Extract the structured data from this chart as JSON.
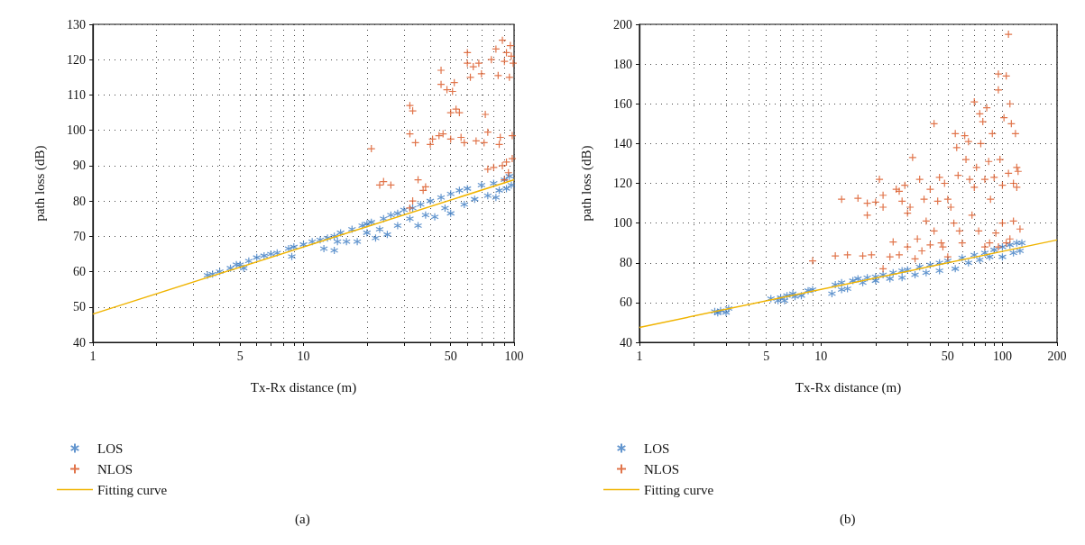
{
  "chart_data": [
    {
      "type": "scatter",
      "xlabel": "Tx-Rx distance (m)",
      "ylabel": "path loss (dB)",
      "log": "x",
      "grid": true,
      "legend": "bottom",
      "annotations": [
        "(a)"
      ],
      "xlim": [
        1,
        100
      ],
      "ylim": [
        40,
        130
      ],
      "xticks": [
        1,
        {
          "value": 2,
          "label": null
        },
        {
          "value": 3,
          "label": null
        },
        {
          "value": 4,
          "label": null
        },
        5,
        {
          "value": 6,
          "label": null
        },
        {
          "value": 7,
          "label": null
        },
        {
          "value": 8,
          "label": null
        },
        {
          "value": 9,
          "label": null
        },
        10,
        {
          "value": 20,
          "label": null
        },
        {
          "value": 30,
          "label": null
        },
        {
          "value": 40,
          "label": null
        },
        50,
        {
          "value": 60,
          "label": null
        },
        {
          "value": 70,
          "label": null
        },
        {
          "value": 80,
          "label": null
        },
        {
          "value": 90,
          "label": null
        },
        100
      ],
      "yticks": [
        40,
        50,
        60,
        70,
        80,
        90,
        100,
        110,
        120,
        130
      ],
      "series": [
        {
          "name": "LOS",
          "marker": "cross",
          "color": "#3b7bc2",
          "x": [
            3.5,
            3.7,
            4,
            4.5,
            4.8,
            5,
            5.2,
            5.5,
            6,
            6.5,
            7,
            7.5,
            8.5,
            8.8,
            9,
            10,
            11,
            12,
            12.5,
            13,
            14,
            14,
            14.5,
            15,
            16,
            17,
            18,
            19,
            20,
            20,
            21,
            22,
            23,
            24,
            25,
            26,
            28,
            28,
            30,
            32,
            33,
            35,
            36,
            38,
            40,
            42,
            45,
            47,
            50,
            50,
            55,
            58,
            60,
            65,
            70,
            75,
            80,
            82,
            85,
            90,
            92,
            95,
            97
          ],
          "values": [
            59,
            59.3,
            60,
            61,
            62,
            62,
            61,
            63,
            64,
            64.5,
            65,
            65.3,
            66.5,
            64.3,
            67,
            67.7,
            68.5,
            69,
            66.5,
            69.5,
            70,
            66,
            68.5,
            71,
            68.5,
            72,
            68.5,
            73,
            73.5,
            71,
            74,
            69.5,
            72,
            75,
            70.5,
            76,
            76.5,
            73,
            77.5,
            75,
            78,
            73,
            79,
            76,
            80,
            75.5,
            81,
            78,
            82,
            76.5,
            83,
            79,
            83.5,
            80.5,
            84.5,
            81.5,
            85,
            81,
            83,
            86,
            83.5,
            87,
            84.5
          ]
        },
        {
          "name": "NLOS",
          "marker": "cross",
          "color": "#d9531e",
          "x": [
            21,
            23,
            24,
            26,
            32,
            33,
            32,
            33,
            32,
            34,
            35,
            37,
            38,
            40,
            41,
            44,
            45,
            45,
            46,
            48,
            50,
            50,
            51,
            52,
            53,
            55,
            56,
            58,
            60,
            60,
            62,
            64,
            66,
            68,
            70,
            72,
            73,
            75,
            75,
            78,
            80,
            82,
            84,
            85,
            86,
            88,
            88,
            90,
            92,
            92,
            94,
            95,
            96,
            97,
            98,
            98,
            99,
            90
          ],
          "values": [
            94.8,
            84.5,
            85.5,
            84.5,
            78,
            80,
            107,
            105.5,
            99,
            96.5,
            86,
            83,
            84,
            96,
            97.5,
            98.5,
            117,
            113,
            99,
            111.5,
            97.5,
            105,
            111,
            113.5,
            106,
            105,
            98,
            96.5,
            122,
            119,
            115,
            118,
            97,
            119,
            116,
            96.5,
            104.5,
            99.5,
            89,
            120,
            89.5,
            123,
            115.5,
            96,
            98,
            125.5,
            90,
            119.5,
            122,
            91,
            88,
            115,
            124,
            121,
            98.5,
            92,
            119,
            86
          ]
        },
        {
          "name": "Fitting curve",
          "type": "line",
          "marker": "none",
          "color": "#f0b400",
          "x": [
            1,
            100
          ],
          "values": [
            48,
            86
          ]
        }
      ]
    },
    {
      "type": "scatter",
      "xlabel": "Tx-Rx distance (m)",
      "ylabel": "path loss (dB)",
      "log": "x",
      "grid": true,
      "legend": "bottom",
      "annotations": [
        "(b)"
      ],
      "xlim": [
        1,
        200
      ],
      "ylim": [
        40,
        200
      ],
      "xticks": [
        1,
        {
          "value": 2,
          "label": null
        },
        {
          "value": 3,
          "label": null
        },
        {
          "value": 4,
          "label": null
        },
        5,
        {
          "value": 6,
          "label": null
        },
        {
          "value": 7,
          "label": null
        },
        {
          "value": 8,
          "label": null
        },
        {
          "value": 9,
          "label": null
        },
        10,
        {
          "value": 20,
          "label": null
        },
        {
          "value": 30,
          "label": null
        },
        {
          "value": 40,
          "label": null
        },
        50,
        {
          "value": 60,
          "label": null
        },
        {
          "value": 70,
          "label": null
        },
        {
          "value": 80,
          "label": null
        },
        {
          "value": 90,
          "label": null
        },
        100,
        200
      ],
      "yticks": [
        40,
        60,
        80,
        100,
        120,
        140,
        160,
        180,
        200
      ],
      "series": [
        {
          "name": "LOS",
          "marker": "cross",
          "color": "#3b7bc2",
          "x": [
            2.6,
            2.7,
            2.8,
            3,
            3.1,
            5.3,
            5.8,
            6,
            6.3,
            6.5,
            7,
            7.2,
            7.8,
            8.5,
            9,
            11.5,
            12,
            13,
            13,
            14,
            15,
            16,
            17,
            18,
            20,
            20,
            22,
            24,
            25,
            28,
            28,
            30,
            33,
            35,
            38,
            40,
            45,
            45,
            50,
            55,
            60,
            65,
            70,
            75,
            80,
            85,
            90,
            100,
            100,
            110,
            115,
            120,
            125,
            128
          ],
          "values": [
            55.5,
            54.8,
            56,
            55,
            57,
            62,
            61,
            62.5,
            61,
            63.5,
            64.5,
            63,
            63.5,
            66,
            66.5,
            64.5,
            69,
            70,
            66.5,
            67,
            71,
            72,
            70,
            72.5,
            73,
            71,
            74,
            72,
            75,
            76,
            72.5,
            76.5,
            74,
            78,
            75,
            79,
            80,
            76,
            81,
            77,
            82.5,
            80,
            84,
            81.5,
            85,
            83,
            86.5,
            88,
            83,
            89,
            85,
            90,
            86,
            90
          ]
        },
        {
          "name": "NLOS",
          "marker": "cross",
          "color": "#d9531e",
          "x": [
            9,
            12,
            13,
            14,
            16,
            17,
            18,
            18,
            19,
            20,
            21,
            22,
            22,
            22,
            24,
            25,
            26,
            27,
            27,
            28,
            29,
            30,
            30,
            31,
            32,
            33,
            34,
            35,
            36,
            37,
            38,
            40,
            40,
            42,
            42,
            44,
            45,
            46,
            47,
            48,
            50,
            50,
            52,
            54,
            55,
            56,
            57,
            58,
            60,
            62,
            63,
            65,
            66,
            68,
            70,
            70,
            72,
            74,
            75,
            76,
            78,
            80,
            80,
            82,
            84,
            86,
            88,
            90,
            92,
            95,
            95,
            97,
            100,
            100,
            102,
            105,
            108,
            108,
            110,
            110,
            112,
            115,
            115,
            118,
            120,
            120,
            122,
            125,
            85,
            95,
            105
          ],
          "values": [
            81,
            83.5,
            112,
            84,
            112.5,
            83.5,
            104,
            110,
            84,
            110.5,
            122,
            108,
            114,
            77,
            83,
            90.5,
            117,
            116,
            84,
            111,
            119,
            105,
            88,
            108,
            133,
            82,
            92,
            122,
            86,
            112,
            101,
            117,
            89,
            150,
            96,
            111,
            123,
            90,
            88,
            120,
            112,
            83,
            108,
            100,
            145,
            138,
            124,
            96,
            90,
            144,
            132,
            141,
            122,
            104,
            161,
            118,
            128,
            96,
            155,
            140,
            151,
            122,
            88,
            158,
            131,
            112,
            145,
            123,
            95,
            175,
            167,
            132,
            119,
            100,
            153,
            174,
            195,
            125,
            160,
            92,
            150,
            120,
            101,
            145,
            128,
            118,
            126,
            97,
            90,
            88,
            90
          ]
        },
        {
          "name": "Fitting curve",
          "type": "line",
          "marker": "none",
          "color": "#f0b400",
          "x": [
            1,
            200
          ],
          "values": [
            47.5,
            91.5
          ]
        }
      ]
    }
  ]
}
